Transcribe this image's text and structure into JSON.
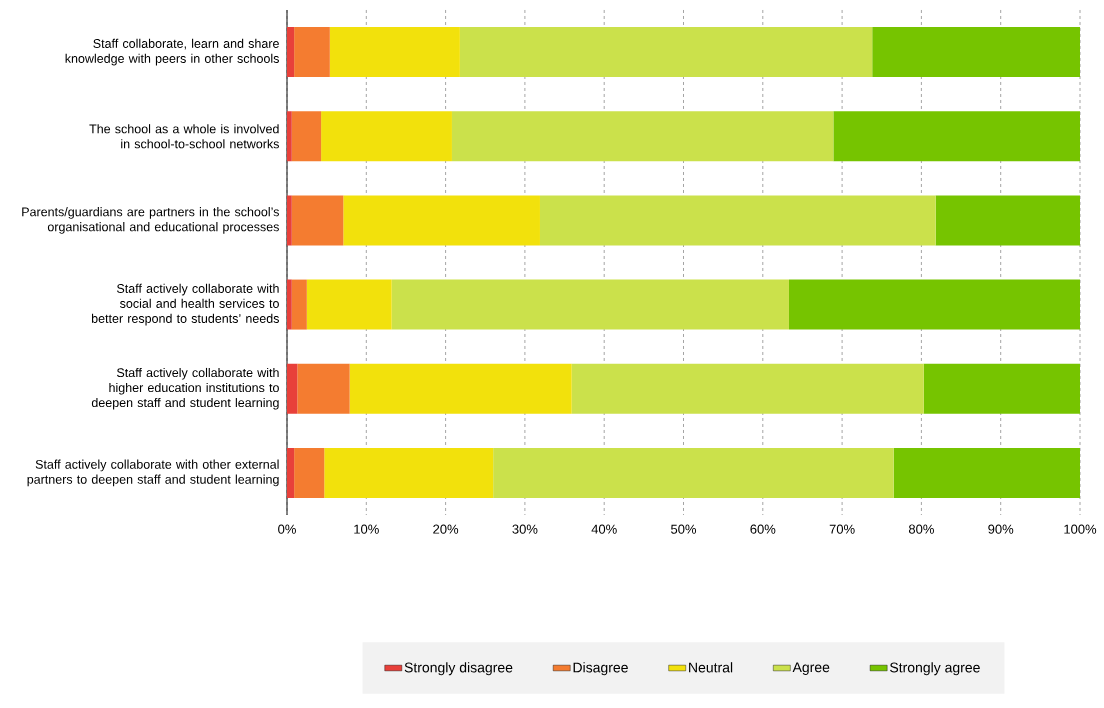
{
  "chart_data": {
    "type": "bar",
    "orientation": "horizontal",
    "stacked": true,
    "categories": [
      "Staff collaborate, learn and share knowledge with peers in other schools",
      "The school as a whole is involved in school-to-school networks",
      "Parents/guardians are partners in the school’s organisational and educational processes",
      "Staff actively collaborate with social and health services to better respond to students’ needs",
      "Staff actively collaborate with higher education institutions to deepen staff and student learning",
      "Staff actively collaborate with other external partners to deepen staff and student learning"
    ],
    "series": [
      {
        "name": "Strongly disagree",
        "color": "#e8403a",
        "values": [
          0.9,
          0.6,
          0.6,
          0.6,
          1.3,
          0.9
        ]
      },
      {
        "name": "Disagree",
        "color": "#f47c30",
        "values": [
          4.5,
          3.7,
          6.5,
          1.9,
          6.6,
          3.8
        ]
      },
      {
        "name": "Neutral",
        "color": "#f2e10c",
        "values": [
          16.4,
          16.5,
          24.8,
          10.7,
          28.0,
          21.3
        ]
      },
      {
        "name": "Agree",
        "color": "#cbe14b",
        "values": [
          52.0,
          48.1,
          49.9,
          50.1,
          44.4,
          50.5
        ]
      },
      {
        "name": "Strongly agree",
        "color": "#76c400",
        "values": [
          26.2,
          31.1,
          18.2,
          36.7,
          19.7,
          23.5
        ]
      }
    ],
    "xlim": [
      0,
      100
    ],
    "xticks": [
      {
        "value": 0,
        "label": "0%"
      },
      {
        "value": 10,
        "label": "10%"
      },
      {
        "value": 20,
        "label": "20%"
      },
      {
        "value": 30,
        "label": "30%"
      },
      {
        "value": 40,
        "label": "40%"
      },
      {
        "value": 50,
        "label": "50%"
      },
      {
        "value": 60,
        "label": "60%"
      },
      {
        "value": 70,
        "label": "70%"
      },
      {
        "value": 80,
        "label": "80%"
      },
      {
        "value": 90,
        "label": "90%"
      },
      {
        "value": 100,
        "label": "100%"
      }
    ],
    "grid": "x",
    "legend": "bottom"
  }
}
